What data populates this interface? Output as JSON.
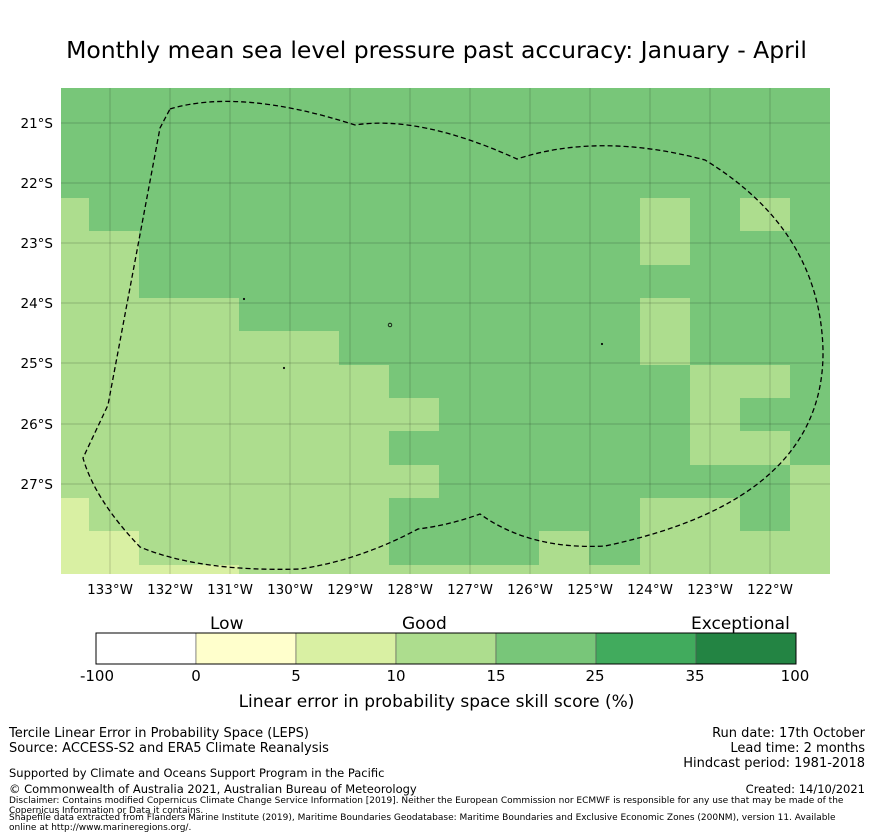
{
  "title": "Monthly mean sea level pressure past accuracy: January - April",
  "map": {
    "lat_labels": [
      "21°S",
      "22°S",
      "23°S",
      "24°S",
      "25°S",
      "26°S",
      "27°S"
    ],
    "lon_labels": [
      "133°W",
      "132°W",
      "131°W",
      "130°W",
      "129°W",
      "128°W",
      "127°W",
      "126°W",
      "125°W",
      "124°W",
      "123°W",
      "122°W"
    ],
    "categories": [
      "score 5-10",
      "score 10-15",
      "score 15-25"
    ],
    "boundary": "dashed EEZ outline"
  },
  "colorbar": {
    "category_labels": {
      "low": "Low",
      "good": "Good",
      "exceptional": "Exceptional"
    },
    "ticks": [
      "-100",
      "0",
      "5",
      "10",
      "15",
      "25",
      "35",
      "100"
    ],
    "colors": [
      "#ffffff",
      "#ffffcc",
      "#d9f0a3",
      "#addd8e",
      "#78c679",
      "#41ab5d",
      "#238443"
    ],
    "label": "Linear error in probability space skill score (%)"
  },
  "footer": {
    "product": "Tercile Linear Error in Probability Space (LEPS)",
    "source": "Source: ACCESS-S2 and ERA5 Climate Reanalysis",
    "support": "Supported by Climate and Oceans Support Program in the Pacific",
    "copyright": "© Commonwealth of Australia 2021, Australian Bureau of Meteorology",
    "run_date": "Run date: 17th October",
    "lead_time": "Lead time: 2 months",
    "hindcast": "Hindcast period: 1981-2018",
    "created": "Created: 14/10/2021",
    "disclaimer_1": "Disclaimer: Contains modified Copernicus Climate Change Service Information [2019]. Neither the European Commission nor ECMWF is responsible for any use that may be made of the",
    "disclaimer_2": "Copernicus Information or Data it contains.",
    "shapefile_1": "Shapefile data extracted from Flanders Marine Institute (2019), Maritime Boundaries Geodatabase: Maritime Boundaries and Exclusive Economic Zones (200NM), version 11. Available",
    "shapefile_2": "online at http://www.marineregions.org/."
  }
}
